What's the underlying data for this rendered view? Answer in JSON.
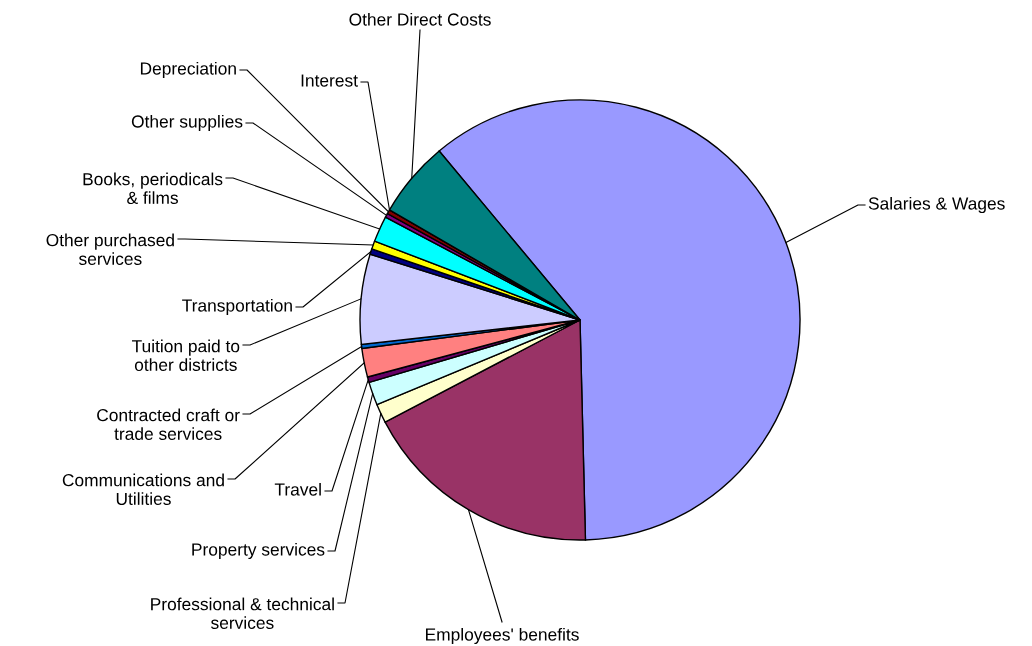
{
  "chart_data": {
    "type": "pie",
    "categories": [
      "Salaries & Wages",
      "Employees' benefits",
      "Professional & technical services",
      "Property services",
      "Travel",
      "Communications and Utilities",
      "Contracted craft or trade services",
      "Tuition paid to other districts",
      "Transportation",
      "Other purchased services",
      "Books, periodicals & films",
      "Other supplies",
      "Depreciation",
      "Interest",
      "Other Direct Costs"
    ],
    "values": [
      60.6,
      17.7,
      1.4,
      1.7,
      0.4,
      2.1,
      0.3,
      6.6,
      0.4,
      0.6,
      1.9,
      0.3,
      0.3,
      null,
      5.6
    ],
    "colors": [
      "#9999ff",
      "#993366",
      "#ffffcc",
      "#ccffff",
      "#660066",
      "#ff8080",
      "#0066cc",
      "#ccccff",
      "#000080",
      "#ffff00",
      "#00ffff",
      "#800080",
      "#800000",
      "#0000ff",
      "#008080"
    ],
    "title": null
  }
}
